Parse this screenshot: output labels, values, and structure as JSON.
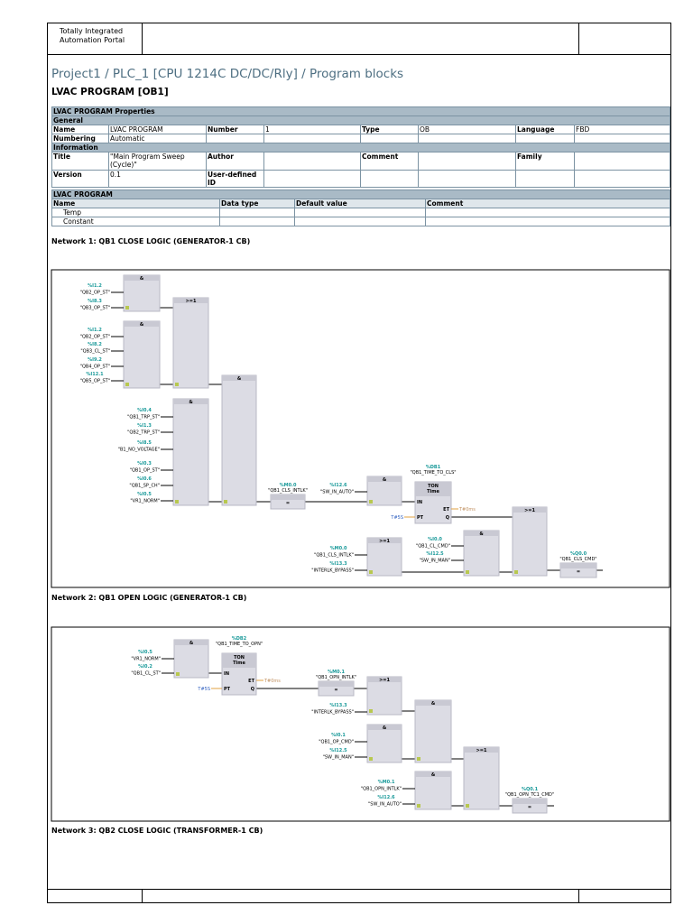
{
  "header": {
    "app": [
      "Totally Integrated",
      "Automation Portal"
    ]
  },
  "path": "Project1 / PLC_1 [CPU 1214C DC/DC/Rly] / Program blocks",
  "block": "LVAC PROGRAM [OB1]",
  "properties": {
    "title": "LVAC PROGRAM Properties",
    "sections": [
      {
        "title": "General",
        "rows": [
          [
            {
              "label": "Name",
              "value": "LVAC PROGRAM"
            },
            {
              "label": "Number",
              "value": "1"
            },
            {
              "label": "Type",
              "value": "OB"
            },
            {
              "label": "Language",
              "value": "FBD"
            }
          ],
          [
            {
              "label": "Numbering",
              "value": "Automatic"
            }
          ]
        ]
      },
      {
        "title": "Information",
        "rows": [
          [
            {
              "label": "Title",
              "value": "\"Main Program Sweep (Cycle)\""
            },
            {
              "label": "Author"
            },
            {
              "label": "Comment"
            },
            {
              "label": "Family"
            }
          ],
          [
            {
              "label": "Version",
              "value": "0.1"
            },
            {
              "label": "User-defined ID"
            }
          ]
        ]
      }
    ]
  },
  "interface": {
    "title": "LVAC PROGRAM",
    "columns": [
      "Name",
      "Data type",
      "Default value",
      "Comment"
    ],
    "rows": [
      "Temp",
      "Constant"
    ]
  },
  "networks": [
    {
      "title": "Network 1: QB1 CLOSE LOGIC (GENERATOR-1 CB)",
      "blocks": [
        {
          "op": "&",
          "inputs": [
            {
              "address": "%I1.2",
              "tag": "\"QB2_OP_ST\""
            },
            {
              "address": "%I8.3",
              "tag": "\"QB3_OP_ST\""
            }
          ]
        },
        {
          "op": "&",
          "inputs": [
            {
              "address": "%I1.2",
              "tag": "\"QB2_OP_ST\""
            },
            {
              "address": "%I8.2",
              "tag": "\"QB3_CL_ST\""
            },
            {
              "address": "%I9.2",
              "tag": "\"QB4_OP_ST\""
            },
            {
              "address": "%I12.1",
              "tag": "\"QB5_OP_ST\""
            }
          ]
        },
        {
          "op": ">=1"
        },
        {
          "op": "&",
          "inputs": [
            {
              "address": "%I0.4",
              "tag": "\"QB1_TRP_ST\""
            },
            {
              "address": "%I1.3",
              "tag": "\"QB2_TRP_ST\""
            },
            {
              "address": "%I8.5",
              "tag": "\"B1_NO_VOLTAGE\""
            },
            {
              "address": "%I0.3",
              "tag": "\"QB1_OP_ST\""
            },
            {
              "address": "%I0.6",
              "tag": "\"QB1_SP_CH\""
            },
            {
              "address": "%I0.5",
              "tag": "\"VR1_NORM\""
            }
          ]
        },
        {
          "op": "&"
        },
        {
          "op": "=",
          "address": "%M0.0",
          "tag": "\"QB1_CLS_INTLK\""
        },
        {
          "op": "&",
          "inputs": [
            {
              "address": "%I12.6",
              "tag": "\"SW_IN_AUTO\""
            }
          ]
        },
        {
          "instance": "%DB1",
          "tag": "\"QB1_TIME_TO_CLS\"",
          "type": "TON",
          "subtype": "Time",
          "pins": [
            "IN",
            "PT",
            "ET",
            "Q"
          ],
          "preset": "T#5S",
          "elapsed": "T#0ms"
        },
        {
          "op": ">=1",
          "inputs": [
            {
              "address": "%M0.0",
              "tag": "\"QB1_CLS_INTLK\""
            },
            {
              "address": "%I13.3",
              "tag": "\"INTERLK_BYPASS\""
            }
          ]
        },
        {
          "op": "&",
          "inputs": [
            {
              "address": "%I0.0",
              "tag": "\"QB1_CL_CMD\""
            },
            {
              "address": "%I12.5",
              "tag": "\"SW_IN_MAN\""
            }
          ]
        },
        {
          "op": ">=1"
        },
        {
          "op": "=",
          "address": "%Q0.0",
          "tag": "\"QB1_CLS_CMD\""
        }
      ]
    },
    {
      "title": "Network 2: QB1 OPEN LOGIC (GENERATOR-1 CB)",
      "blocks": [
        {
          "op": "&",
          "inputs": [
            {
              "address": "%I0.5",
              "tag": "\"VR1_NORM\""
            },
            {
              "address": "%I0.2",
              "tag": "\"QB1_CL_ST\""
            }
          ]
        },
        {
          "instance": "%DB2",
          "tag": "\"QB1_TIME_TO_OPN\"",
          "type": "TON",
          "subtype": "Time",
          "pins": [
            "IN",
            "PT",
            "ET",
            "Q"
          ],
          "preset": "T#5S",
          "elapsed": "T#0ms"
        },
        {
          "op": "=",
          "address": "%M0.1",
          "tag": "\"QB1_OPN_INTLK\""
        },
        {
          "op": ">=1",
          "inputs": [
            {
              "address": "%I13.3",
              "tag": "\"INTERLK_BYPASS\""
            }
          ]
        },
        {
          "op": "&",
          "inputs": [
            {
              "address": "%I0.1",
              "tag": "\"QB1_OP_CMD\""
            },
            {
              "address": "%I12.5",
              "tag": "\"SW_IN_MAN\""
            }
          ]
        },
        {
          "op": "&"
        },
        {
          "op": ">=1"
        },
        {
          "op": "&",
          "inputs": [
            {
              "address": "%M0.1",
              "tag": "\"QB1_OPN_INTLK\""
            },
            {
              "address": "%I12.6",
              "tag": "\"SW_IN_AUTO\""
            }
          ]
        },
        {
          "op": "=",
          "address": "%Q0.1",
          "tag": "\"QB1_OPN_TC1_CMD\""
        }
      ]
    },
    {
      "title": "Network 3: QB2 CLOSE LOGIC (TRANSFORMER-1 CB)"
    }
  ]
}
